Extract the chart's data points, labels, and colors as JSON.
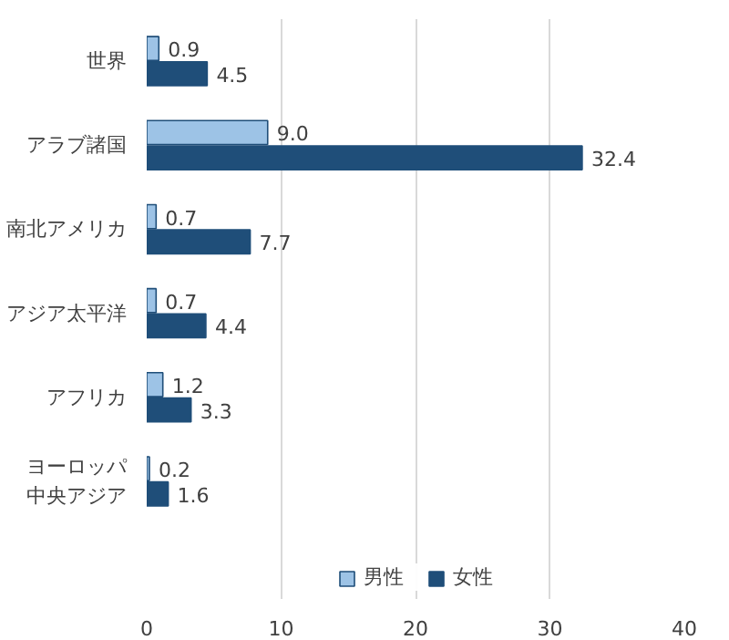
{
  "chart_data": {
    "type": "bar",
    "orientation": "horizontal",
    "categories": [
      "世界",
      "アラブ諸国",
      "南北アメリカ",
      "アジア太平洋",
      "アフリカ",
      "ヨーロッパ中央アジア"
    ],
    "series": [
      {
        "name": "男性",
        "color": "#9dc3e6",
        "values": [
          0.9,
          9.0,
          0.7,
          0.7,
          1.2,
          0.2
        ],
        "value_labels": [
          "0.9",
          "9.0",
          "0.7",
          "0.7",
          "1.2",
          "0.2"
        ]
      },
      {
        "name": "女性",
        "color": "#1f4e79",
        "values": [
          4.5,
          32.4,
          7.7,
          4.4,
          3.3,
          1.6
        ],
        "value_labels": [
          "4.5",
          "32.4",
          "7.7",
          "4.4",
          "3.3",
          "1.6"
        ]
      }
    ],
    "xlim": [
      0,
      40
    ],
    "xticks": [
      0,
      10,
      20,
      30,
      40
    ],
    "grid": "x",
    "legend": "bottom"
  }
}
